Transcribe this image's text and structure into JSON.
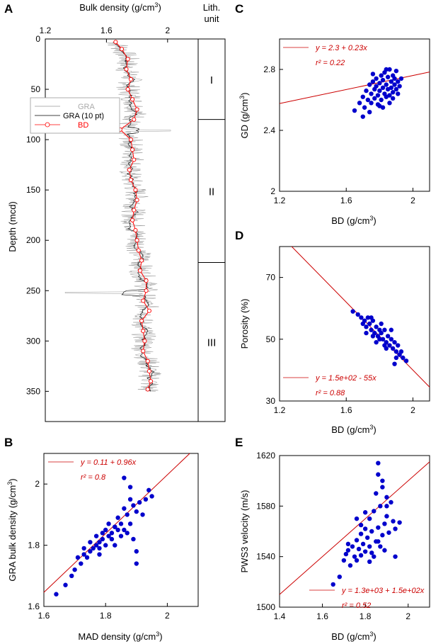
{
  "colors": {
    "axis": "#000000",
    "gra_raw": "#999999",
    "gra_10pt": "#000000",
    "bd": "#ff0000",
    "points": "#0000cc",
    "fit": "#cc0000"
  },
  "panels": {
    "A": {
      "letter": "A",
      "xlabel": "Bulk density (g/cm",
      "xlabel_sup": "3",
      "xlabel_end": ")",
      "ylabel": "Depth (mcd)",
      "xticks": [
        "1.2",
        "1.6",
        "2"
      ],
      "yticks": [
        "0",
        "50",
        "100",
        "150",
        "200",
        "250",
        "300",
        "350"
      ],
      "legend": {
        "gra": "GRA",
        "gra10": "GRA (10 pt)",
        "bd": "BD"
      }
    },
    "lith": {
      "title_line1": "Lith.",
      "title_line2": "unit",
      "units": [
        "I",
        "II",
        "III"
      ]
    },
    "B": {
      "letter": "B",
      "xlabel": "MAD density (g/cm",
      "xlabel_sup": "3",
      "xlabel_end": ")",
      "ylabel": "GRA bulk density (g/cm",
      "ylabel_sup": "3",
      "ylabel_end": ")",
      "xticks": [
        "1.6",
        "1.8",
        "2"
      ],
      "yticks": [
        "1.6",
        "1.8",
        "2"
      ],
      "eq": "y = 0.11 + 0.96x",
      "r2": "r² = 0.8"
    },
    "C": {
      "letter": "C",
      "xlabel": "BD (g/cm",
      "xlabel_sup": "3",
      "xlabel_end": ")",
      "ylabel": "GD (g/cm",
      "ylabel_sup": "3",
      "ylabel_end": ")",
      "xticks": [
        "1.2",
        "1.6",
        "2"
      ],
      "yticks": [
        "2",
        "2.4",
        "2.8"
      ],
      "eq": "y = 2.3 + 0.23x",
      "r2": "r² = 0.22"
    },
    "D": {
      "letter": "D",
      "xlabel": "BD (g/cm",
      "xlabel_sup": "3",
      "xlabel_end": ")",
      "ylabel": "Porosity (%)",
      "xticks": [
        "1.2",
        "1.6",
        "2"
      ],
      "yticks": [
        "30",
        "50",
        "70"
      ],
      "eq": "y = 1.5e+02 - 55x",
      "r2": "r² = 0.88"
    },
    "E": {
      "letter": "E",
      "xlabel": "BD (g/cm",
      "xlabel_sup": "3",
      "xlabel_end": ")",
      "ylabel": "PWS3 velocity (m/s)",
      "xticks": [
        "1.4",
        "1.6",
        "1.8",
        "2"
      ],
      "yticks": [
        "1500",
        "1540",
        "1580",
        "1620"
      ],
      "eq": "y = 1.3e+03 + 1.5e+02x",
      "r2": "r² = 0.52"
    }
  },
  "chart_data": [
    {
      "id": "A",
      "type": "line",
      "xlim": [
        1.2,
        2.2
      ],
      "ylim": [
        0,
        380
      ],
      "y_inverted": true,
      "series": [
        {
          "name": "GRA",
          "style": "gray thin line"
        },
        {
          "name": "GRA (10 pt)",
          "style": "black line"
        },
        {
          "name": "BD",
          "style": "red line with open circles",
          "depth": [
            3,
            10,
            20,
            30,
            40,
            50,
            60,
            70,
            80,
            90,
            100,
            110,
            120,
            130,
            140,
            150,
            160,
            170,
            180,
            190,
            200,
            210,
            220,
            230,
            240,
            250,
            260,
            270,
            280,
            290,
            300,
            310,
            320,
            330,
            340,
            348
          ],
          "density": [
            1.66,
            1.7,
            1.74,
            1.73,
            1.76,
            1.74,
            1.77,
            1.8,
            1.78,
            1.69,
            1.76,
            1.77,
            1.78,
            1.75,
            1.76,
            1.79,
            1.8,
            1.78,
            1.77,
            1.79,
            1.8,
            1.81,
            1.83,
            1.82,
            1.86,
            1.86,
            1.84,
            1.88,
            1.83,
            1.84,
            1.85,
            1.84,
            1.87,
            1.88,
            1.89,
            1.87
          ]
        }
      ],
      "lith_units": [
        {
          "name": "I",
          "top": 0,
          "bottom": 80
        },
        {
          "name": "II",
          "top": 80,
          "bottom": 222
        },
        {
          "name": "III",
          "top": 222,
          "bottom": 380
        }
      ]
    },
    {
      "id": "B",
      "type": "scatter",
      "xlim": [
        1.6,
        2.1
      ],
      "ylim": [
        1.6,
        2.1
      ],
      "fit": {
        "intercept": 0.11,
        "slope": 0.96,
        "r2": 0.8
      },
      "x": [
        1.64,
        1.67,
        1.69,
        1.7,
        1.71,
        1.72,
        1.73,
        1.73,
        1.74,
        1.75,
        1.75,
        1.76,
        1.77,
        1.77,
        1.78,
        1.78,
        1.79,
        1.79,
        1.8,
        1.8,
        1.81,
        1.81,
        1.82,
        1.82,
        1.83,
        1.83,
        1.84,
        1.84,
        1.85,
        1.85,
        1.86,
        1.86,
        1.87,
        1.87,
        1.88,
        1.88,
        1.89,
        1.89,
        1.9,
        1.9,
        1.91,
        1.92,
        1.93,
        1.94,
        1.95,
        1.86,
        1.83,
        1.9,
        1.78,
        1.88
      ],
      "y": [
        1.64,
        1.67,
        1.7,
        1.72,
        1.76,
        1.74,
        1.77,
        1.79,
        1.76,
        1.78,
        1.81,
        1.79,
        1.8,
        1.83,
        1.81,
        1.79,
        1.84,
        1.82,
        1.85,
        1.8,
        1.83,
        1.87,
        1.84,
        1.82,
        1.86,
        1.8,
        1.85,
        1.89,
        1.83,
        1.87,
        1.85,
        1.92,
        1.84,
        1.9,
        1.87,
        1.95,
        1.82,
        1.93,
        1.91,
        1.74,
        1.94,
        1.9,
        1.95,
        1.98,
        1.96,
        2.02,
        1.86,
        1.78,
        1.77,
        1.99
      ]
    },
    {
      "id": "C",
      "type": "scatter",
      "xlim": [
        1.2,
        2.1
      ],
      "ylim": [
        2.0,
        3.0
      ],
      "fit": {
        "intercept": 2.3,
        "slope": 0.23,
        "r2": 0.22
      },
      "x": [
        1.65,
        1.68,
        1.7,
        1.71,
        1.72,
        1.73,
        1.74,
        1.75,
        1.75,
        1.76,
        1.77,
        1.77,
        1.78,
        1.78,
        1.79,
        1.79,
        1.8,
        1.8,
        1.81,
        1.81,
        1.82,
        1.82,
        1.83,
        1.83,
        1.84,
        1.84,
        1.85,
        1.85,
        1.86,
        1.86,
        1.87,
        1.87,
        1.88,
        1.88,
        1.89,
        1.89,
        1.9,
        1.9,
        1.91,
        1.92,
        1.93,
        1.7,
        1.74,
        1.8,
        1.86,
        1.91,
        1.76,
        1.84,
        1.88,
        1.82
      ],
      "y": [
        2.53,
        2.58,
        2.62,
        2.55,
        2.66,
        2.6,
        2.7,
        2.64,
        2.58,
        2.72,
        2.67,
        2.61,
        2.74,
        2.69,
        2.63,
        2.57,
        2.71,
        2.66,
        2.76,
        2.6,
        2.68,
        2.73,
        2.64,
        2.78,
        2.7,
        2.62,
        2.75,
        2.67,
        2.8,
        2.63,
        2.72,
        2.68,
        2.76,
        2.65,
        2.7,
        2.74,
        2.67,
        2.79,
        2.72,
        2.69,
        2.74,
        2.49,
        2.52,
        2.56,
        2.58,
        2.64,
        2.77,
        2.8,
        2.61,
        2.55
      ]
    },
    {
      "id": "D",
      "type": "scatter",
      "xlim": [
        1.2,
        2.1
      ],
      "ylim": [
        30,
        80
      ],
      "fit": {
        "intercept": 150,
        "slope": -55,
        "r2": 0.88
      },
      "x": [
        1.64,
        1.67,
        1.69,
        1.7,
        1.71,
        1.72,
        1.73,
        1.74,
        1.75,
        1.76,
        1.77,
        1.78,
        1.79,
        1.8,
        1.81,
        1.82,
        1.83,
        1.84,
        1.85,
        1.86,
        1.87,
        1.88,
        1.89,
        1.9,
        1.91,
        1.92,
        1.93,
        1.94,
        1.96,
        1.72,
        1.75,
        1.78,
        1.81,
        1.84,
        1.87,
        1.9,
        1.76,
        1.83,
        1.89,
        1.8
      ],
      "y": [
        59,
        58,
        57,
        55,
        56,
        54,
        57,
        55,
        53,
        56,
        52,
        54,
        51,
        53,
        52,
        50,
        53,
        49,
        51,
        48,
        50,
        47,
        49,
        46,
        48,
        45,
        46,
        44,
        43,
        52,
        57,
        49,
        55,
        47,
        53,
        44,
        51,
        48,
        42,
        50
      ]
    },
    {
      "id": "E",
      "type": "scatter",
      "xlim": [
        1.4,
        2.1
      ],
      "ylim": [
        1500,
        1620
      ],
      "fit": {
        "intercept": 1300,
        "slope": 150,
        "r2": 0.52
      },
      "x": [
        1.65,
        1.68,
        1.7,
        1.71,
        1.72,
        1.73,
        1.74,
        1.75,
        1.76,
        1.76,
        1.77,
        1.78,
        1.78,
        1.79,
        1.8,
        1.8,
        1.81,
        1.82,
        1.82,
        1.83,
        1.83,
        1.84,
        1.85,
        1.85,
        1.86,
        1.86,
        1.87,
        1.87,
        1.88,
        1.88,
        1.89,
        1.89,
        1.9,
        1.9,
        1.91,
        1.92,
        1.93,
        1.94,
        1.96,
        1.86,
        1.84,
        1.8,
        1.76,
        1.88,
        1.82,
        1.72,
        1.9,
        1.86,
        1.78,
        1.94
      ],
      "y": [
        1518,
        1524,
        1537,
        1542,
        1545,
        1533,
        1548,
        1540,
        1553,
        1537,
        1546,
        1558,
        1541,
        1550,
        1562,
        1544,
        1555,
        1548,
        1570,
        1560,
        1543,
        1576,
        1552,
        1590,
        1563,
        1614,
        1548,
        1580,
        1557,
        1600,
        1566,
        1545,
        1572,
        1587,
        1559,
        1583,
        1568,
        1540,
        1567,
        1605,
        1540,
        1575,
        1570,
        1595,
        1536,
        1550,
        1580,
        1552,
        1565,
        1562
      ]
    }
  ]
}
